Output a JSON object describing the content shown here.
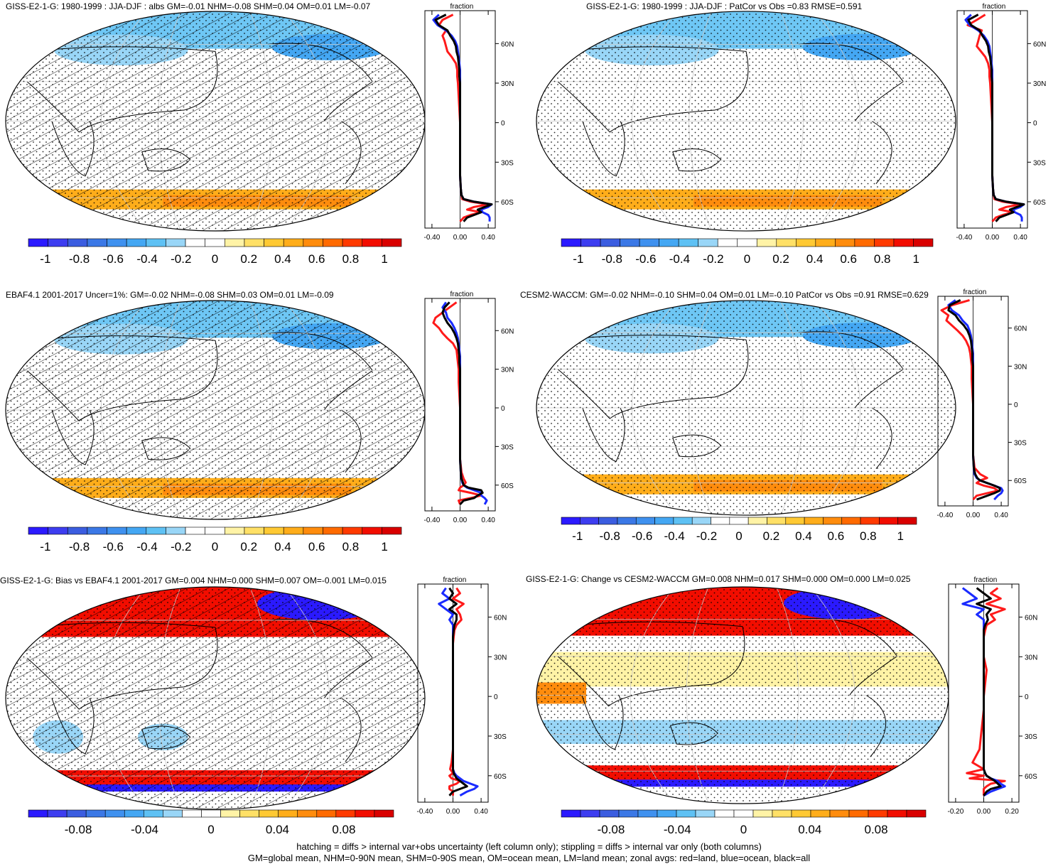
{
  "colors": {
    "land": "#ff1a1a",
    "ocean": "#1a2bff",
    "all": "#000000",
    "colorbar": [
      "#2b1aff",
      "#3d3df0",
      "#3b5de0",
      "#3b78e6",
      "#3f91ef",
      "#44a7f3",
      "#5ec1f4",
      "#99d6f7",
      "#ffffff",
      "#ffffff",
      "#fff3a6",
      "#ffe066",
      "#ffc933",
      "#ffad1a",
      "#ff8c0d",
      "#ff6a00",
      "#ff3a00",
      "#f20d00",
      "#d90000"
    ]
  },
  "footer": {
    "line1": "hatching = diffs > internal var+obs uncertainty (left column only); stippling = diffs > internal var only (both columns)",
    "line2": "GM=global mean, NHM=0-90N mean, SHM=0-90S mean, OM=ocean mean, LM=land mean; zonal avgs: red=land, blue=ocean, black=all"
  },
  "chart_data": [
    {
      "type": "heatmap",
      "title": "GISS-E2-1-G: 1980-1999 : JJA-DJF : albs GM=-0.01 NHM=-0.08 SHM=0.04 OM=0.01 LM=-0.07",
      "colorbar": {
        "labels": [
          "-1",
          "-0.8",
          "-0.6",
          "-0.4",
          "-0.2",
          "0",
          "0.2",
          "0.4",
          "0.6",
          "0.8",
          "1"
        ],
        "range": [
          -1.1,
          1.1
        ]
      },
      "overlay": "hatching+stippling",
      "zonal": {
        "xlabel": "fraction",
        "xticks": [
          "-0.40",
          "0.00",
          "0.40"
        ],
        "xlim": [
          -0.5,
          0.5
        ],
        "ylabels": [
          "60N",
          "30N",
          "0",
          "30S",
          "60S"
        ],
        "ylim": [
          -80,
          85
        ],
        "lat": [
          82,
          78,
          74,
          70,
          66,
          62,
          58,
          54,
          50,
          45,
          40,
          35,
          30,
          20,
          10,
          0,
          -10,
          -20,
          -30,
          -40,
          -50,
          -55,
          -58,
          -60,
          -62,
          -64,
          -66,
          -68,
          -70,
          -72,
          -75
        ],
        "land": [
          -0.1,
          -0.25,
          -0.3,
          -0.2,
          -0.25,
          -0.22,
          -0.2,
          -0.18,
          -0.12,
          -0.06,
          -0.04,
          -0.04,
          -0.03,
          -0.02,
          -0.01,
          0.0,
          0.0,
          0.0,
          0.0,
          0.0,
          0.01,
          0.02,
          0.03,
          0.15,
          0.4,
          0.2,
          0.1,
          0.3,
          0.15,
          0.05,
          0.0
        ],
        "ocean": [
          -0.3,
          -0.38,
          -0.32,
          -0.2,
          -0.12,
          -0.07,
          -0.04,
          -0.03,
          -0.02,
          -0.01,
          0.0,
          0.0,
          0.0,
          0.0,
          0.0,
          0.0,
          0.0,
          0.0,
          0.0,
          0.0,
          0.01,
          0.02,
          0.05,
          0.2,
          0.45,
          0.4,
          0.3,
          0.32,
          0.4,
          0.42,
          0.42
        ],
        "all": [
          -0.2,
          -0.35,
          -0.3,
          -0.18,
          -0.14,
          -0.09,
          -0.06,
          -0.05,
          -0.03,
          -0.02,
          -0.01,
          -0.01,
          0.0,
          0.0,
          0.0,
          0.0,
          0.0,
          0.0,
          0.0,
          0.0,
          0.01,
          0.02,
          0.05,
          0.2,
          0.45,
          0.35,
          0.25,
          0.3,
          0.2,
          0.1,
          0.05
        ]
      }
    },
    {
      "type": "heatmap",
      "title": "GISS-E2-1-G: 1980-1999 : JJA-DJF : PatCor vs Obs =0.83 RMSE=0.591",
      "colorbar": {
        "labels": [
          "-1",
          "-0.8",
          "-0.6",
          "-0.4",
          "-0.2",
          "0",
          "0.2",
          "0.4",
          "0.6",
          "0.8",
          "1"
        ],
        "range": [
          -1.1,
          1.1
        ]
      },
      "overlay": "stippling",
      "zonal": {
        "xlabel": "fraction",
        "xticks": [
          "-0.40",
          "0.00",
          "0.40"
        ],
        "xlim": [
          -0.5,
          0.5
        ],
        "ylabels": [
          "60N",
          "30N",
          "0",
          "30S",
          "60S"
        ],
        "ylim": [
          -80,
          85
        ],
        "lat": [
          82,
          78,
          74,
          70,
          66,
          62,
          58,
          54,
          50,
          45,
          40,
          35,
          30,
          20,
          10,
          0,
          -10,
          -20,
          -30,
          -40,
          -50,
          -55,
          -58,
          -60,
          -62,
          -64,
          -66,
          -68,
          -70,
          -72,
          -75
        ],
        "land": [
          -0.1,
          -0.22,
          -0.35,
          -0.15,
          -0.18,
          -0.2,
          -0.22,
          -0.16,
          -0.1,
          -0.06,
          -0.04,
          -0.04,
          -0.03,
          -0.02,
          -0.01,
          0.0,
          0.0,
          0.0,
          0.0,
          0.0,
          0.01,
          0.02,
          0.03,
          0.15,
          0.4,
          0.2,
          0.1,
          0.3,
          0.15,
          0.05,
          0.0
        ],
        "ocean": [
          -0.3,
          -0.38,
          -0.32,
          -0.2,
          -0.12,
          -0.07,
          -0.04,
          -0.03,
          -0.02,
          -0.01,
          0.0,
          0.0,
          0.0,
          0.0,
          0.0,
          0.0,
          0.0,
          0.0,
          0.0,
          0.0,
          0.01,
          0.02,
          0.05,
          0.2,
          0.45,
          0.4,
          0.3,
          0.32,
          0.4,
          0.42,
          0.42
        ],
        "all": [
          -0.2,
          -0.34,
          -0.3,
          -0.18,
          -0.14,
          -0.09,
          -0.06,
          -0.05,
          -0.03,
          -0.02,
          -0.01,
          -0.01,
          0.0,
          0.0,
          0.0,
          0.0,
          0.0,
          0.0,
          0.0,
          0.0,
          0.01,
          0.02,
          0.05,
          0.2,
          0.45,
          0.35,
          0.25,
          0.3,
          0.2,
          0.1,
          0.05
        ]
      }
    },
    {
      "type": "heatmap",
      "title": "EBAF4.1 2001-2017 Uncer=1%: GM=-0.02 NHM=-0.08 SHM=0.03 OM=0.01 LM=-0.09",
      "colorbar": {
        "labels": [
          "-1",
          "-0.8",
          "-0.6",
          "-0.4",
          "-0.2",
          "0",
          "0.2",
          "0.4",
          "0.6",
          "0.8",
          "1"
        ],
        "range": [
          -1.1,
          1.1
        ]
      },
      "overlay": "hatching+stippling",
      "zonal": {
        "xlabel": "fraction",
        "xticks": [
          "-0.40",
          "0.00",
          "0.40"
        ],
        "xlim": [
          -0.5,
          0.5
        ],
        "ylabels": [
          "60N",
          "30N",
          "0",
          "30S",
          "60S"
        ],
        "ylim": [
          -80,
          85
        ],
        "lat": [
          82,
          78,
          74,
          70,
          66,
          62,
          58,
          54,
          50,
          45,
          40,
          35,
          30,
          20,
          10,
          0,
          -10,
          -20,
          -30,
          -40,
          -50,
          -55,
          -58,
          -60,
          -62,
          -64,
          -66,
          -68,
          -70,
          -72,
          -75
        ],
        "land": [
          -0.05,
          -0.15,
          -0.25,
          -0.35,
          -0.38,
          -0.3,
          -0.25,
          -0.18,
          -0.1,
          -0.05,
          -0.04,
          -0.03,
          -0.02,
          -0.02,
          -0.01,
          0.0,
          0.0,
          0.0,
          0.0,
          0.0,
          0.02,
          0.05,
          0.08,
          0.05,
          0.0,
          -0.02,
          0.15,
          0.3,
          0.15,
          -0.02,
          0.0
        ],
        "ocean": [
          -0.2,
          -0.25,
          -0.2,
          -0.18,
          -0.12,
          -0.08,
          -0.05,
          -0.03,
          -0.02,
          -0.01,
          0.0,
          0.0,
          0.0,
          0.0,
          0.0,
          0.0,
          0.0,
          0.0,
          0.0,
          0.0,
          0.01,
          0.02,
          0.03,
          0.05,
          0.1,
          0.2,
          0.3,
          0.3,
          0.35,
          0.38,
          0.35
        ],
        "all": [
          -0.15,
          -0.22,
          -0.25,
          -0.22,
          -0.18,
          -0.12,
          -0.08,
          -0.05,
          -0.03,
          -0.02,
          -0.01,
          -0.01,
          0.0,
          0.0,
          0.0,
          0.0,
          0.0,
          0.0,
          0.0,
          0.0,
          0.01,
          0.02,
          0.04,
          0.05,
          0.12,
          0.3,
          0.32,
          0.25,
          0.2,
          0.05,
          0.0
        ]
      }
    },
    {
      "type": "heatmap",
      "title": "CESM2-WACCM: GM=-0.02 NHM=-0.10 SHM=0.04 OM=0.01 LM=-0.10 PatCor vs Obs =0.91 RMSE=0.629",
      "colorbar": {
        "labels": [
          "-1",
          "-0.8",
          "-0.6",
          "-0.4",
          "-0.2",
          "0",
          "0.2",
          "0.4",
          "0.6",
          "0.8",
          "1"
        ],
        "range": [
          -1.1,
          1.1
        ]
      },
      "overlay": "stippling",
      "zonal": {
        "xlabel": "fraction",
        "xticks": [
          "-0.40",
          "0.00",
          "0.40"
        ],
        "xlim": [
          -0.5,
          0.5
        ],
        "ylabels": [
          "60N",
          "30N",
          "0",
          "30S",
          "60S"
        ],
        "ylim": [
          -80,
          85
        ],
        "lat": [
          82,
          78,
          74,
          70,
          66,
          62,
          58,
          54,
          50,
          45,
          40,
          35,
          30,
          20,
          10,
          0,
          -10,
          -20,
          -30,
          -40,
          -50,
          -55,
          -58,
          -60,
          -62,
          -64,
          -66,
          -68,
          -70,
          -72,
          -75
        ],
        "land": [
          -0.05,
          -0.3,
          -0.45,
          -0.35,
          -0.38,
          -0.3,
          -0.22,
          -0.15,
          -0.1,
          -0.06,
          -0.04,
          -0.03,
          -0.02,
          -0.02,
          -0.01,
          0.0,
          0.0,
          0.0,
          0.0,
          0.0,
          0.02,
          0.1,
          0.2,
          0.1,
          0.05,
          0.15,
          0.3,
          0.35,
          0.2,
          0.05,
          0.0
        ],
        "ocean": [
          -0.25,
          -0.35,
          -0.3,
          -0.2,
          -0.15,
          -0.08,
          -0.05,
          -0.03,
          -0.02,
          -0.01,
          0.0,
          0.0,
          0.0,
          0.0,
          0.0,
          0.0,
          0.0,
          0.0,
          0.0,
          0.0,
          0.01,
          0.02,
          0.05,
          0.1,
          0.2,
          0.3,
          0.4,
          0.42,
          0.4,
          0.35,
          0.3
        ],
        "all": [
          -0.18,
          -0.33,
          -0.35,
          -0.25,
          -0.2,
          -0.13,
          -0.08,
          -0.05,
          -0.03,
          -0.02,
          -0.01,
          -0.01,
          0.0,
          0.0,
          0.0,
          0.0,
          0.0,
          0.0,
          0.0,
          0.0,
          0.01,
          0.03,
          0.06,
          0.1,
          0.2,
          0.3,
          0.38,
          0.38,
          0.3,
          0.2,
          0.05
        ]
      }
    },
    {
      "type": "heatmap",
      "title": "GISS-E2-1-G: Bias vs EBAF4.1 2001-2017 GM=0.004 NHM=0.000 SHM=0.007 OM=-0.001 LM=0.015",
      "colorbar": {
        "labels": [
          "-0.08",
          "-0.04",
          "0",
          "0.04",
          "0.08"
        ],
        "range": [
          -0.11,
          0.11
        ]
      },
      "overlay": "hatching+stippling",
      "zonal": {
        "xlabel": "fraction",
        "xticks": [
          "-0.40",
          "0.00",
          "0.40"
        ],
        "xlim": [
          -0.5,
          0.5
        ],
        "ylabels": [
          "60N",
          "30N",
          "0",
          "30S",
          "60S"
        ],
        "ylim": [
          -80,
          85
        ],
        "lat": [
          82,
          78,
          74,
          70,
          66,
          62,
          58,
          54,
          50,
          45,
          40,
          35,
          30,
          20,
          10,
          0,
          -10,
          -20,
          -30,
          -40,
          -50,
          -55,
          -58,
          -60,
          -62,
          -64,
          -66,
          -68,
          -70,
          -72,
          -75
        ],
        "land": [
          0.05,
          0.1,
          0.0,
          0.15,
          0.05,
          0.1,
          0.12,
          0.05,
          0.02,
          0.01,
          0.0,
          0.0,
          0.0,
          0.0,
          0.0,
          0.0,
          0.0,
          0.0,
          0.0,
          0.0,
          -0.02,
          -0.04,
          0.0,
          -0.05,
          -0.02,
          0.1,
          0.05,
          -0.05,
          -0.05,
          0.0,
          0.0
        ],
        "ocean": [
          -0.1,
          -0.15,
          -0.05,
          -0.2,
          -0.1,
          0.0,
          -0.05,
          0.0,
          0.0,
          0.0,
          0.0,
          0.0,
          0.0,
          0.0,
          0.0,
          0.0,
          0.0,
          0.0,
          0.0,
          0.0,
          0.0,
          0.0,
          0.02,
          0.05,
          0.1,
          0.15,
          0.25,
          0.35,
          0.3,
          0.2,
          0.1
        ],
        "all": [
          -0.05,
          0.0,
          -0.05,
          0.05,
          -0.05,
          0.05,
          0.05,
          0.02,
          0.01,
          0.0,
          0.0,
          0.0,
          0.0,
          0.0,
          0.0,
          0.0,
          0.0,
          0.0,
          0.0,
          0.0,
          0.0,
          0.0,
          0.01,
          0.03,
          0.05,
          0.1,
          0.15,
          0.2,
          0.1,
          0.0,
          -0.05
        ]
      }
    },
    {
      "type": "heatmap",
      "title": "GISS-E2-1-G: Change vs CESM2-WACCM GM=0.008 NHM=0.017 SHM=0.000 OM=0.000 LM=0.025",
      "colorbar": {
        "labels": [
          "-0.08",
          "-0.04",
          "0",
          "0.04",
          "0.08"
        ],
        "range": [
          -0.11,
          0.11
        ]
      },
      "overlay": "stippling",
      "zonal": {
        "xlabel": "fraction",
        "xticks": [
          "-0.20",
          "0.00",
          "0.20"
        ],
        "xlim": [
          -0.25,
          0.25
        ],
        "ylabels": [
          "60N",
          "30N",
          "0",
          "30S",
          "60S"
        ],
        "ylim": [
          -80,
          85
        ],
        "lat": [
          82,
          78,
          74,
          70,
          66,
          62,
          58,
          54,
          50,
          45,
          40,
          35,
          30,
          20,
          10,
          0,
          -10,
          -20,
          -30,
          -40,
          -50,
          -55,
          -58,
          -60,
          -62,
          -64,
          -66,
          -68,
          -70,
          -72,
          -75
        ],
        "land": [
          0.1,
          0.05,
          0.12,
          0.02,
          0.15,
          0.05,
          0.08,
          0.02,
          0.01,
          0.0,
          0.0,
          0.0,
          0.0,
          0.02,
          0.01,
          0.0,
          0.0,
          -0.01,
          -0.02,
          -0.03,
          -0.08,
          0.0,
          -0.12,
          0.0,
          -0.1,
          0.15,
          0.05,
          0.02,
          0.0,
          0.0,
          0.0
        ],
        "ocean": [
          -0.15,
          -0.1,
          -0.05,
          -0.15,
          0.0,
          -0.05,
          0.0,
          0.0,
          0.0,
          0.0,
          0.0,
          0.0,
          0.0,
          0.0,
          0.0,
          0.0,
          0.0,
          0.0,
          0.0,
          0.0,
          0.0,
          0.0,
          0.01,
          0.02,
          0.05,
          0.1,
          0.12,
          0.15,
          0.1,
          0.05,
          0.0
        ],
        "all": [
          -0.05,
          0.0,
          0.05,
          -0.05,
          0.05,
          0.02,
          0.03,
          0.01,
          0.0,
          0.0,
          0.0,
          0.0,
          0.0,
          0.0,
          0.0,
          0.0,
          0.0,
          0.0,
          0.0,
          0.0,
          0.0,
          0.0,
          0.01,
          0.02,
          0.05,
          0.08,
          0.1,
          0.12,
          0.05,
          0.02,
          0.0
        ]
      }
    }
  ]
}
